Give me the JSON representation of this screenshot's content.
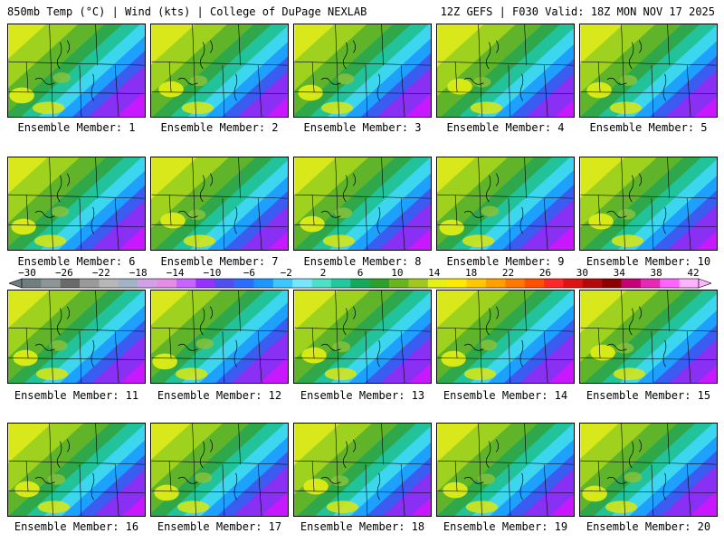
{
  "header": {
    "left_text": "850mb Temp (°C) | Wind (kts) | College of DuPage NEXLAB",
    "right_text": "12Z GEFS | F030 Valid: 18Z MON NOV 17 2025"
  },
  "legend": {
    "tick_labels": [
      "−30",
      "−26",
      "−22",
      "−18",
      "−14",
      "−10",
      "−6",
      "−2",
      "2",
      "6",
      "10",
      "14",
      "18",
      "22",
      "26",
      "30",
      "34",
      "38",
      "42"
    ],
    "colors": [
      "#6f7f7f",
      "#8c9696",
      "#6a6a6a",
      "#9a9a9a",
      "#b7b7b7",
      "#a0b4c8",
      "#d2a0e6",
      "#e68ce6",
      "#c864ff",
      "#9632ff",
      "#5050f0",
      "#2a6eff",
      "#1e96ff",
      "#3cc8ff",
      "#78e6ff",
      "#4de0c8",
      "#23c8a0",
      "#14aa5a",
      "#2ca02c",
      "#6ab41e",
      "#a0c81e",
      "#e6f014",
      "#ffeb00",
      "#ffc800",
      "#ffa000",
      "#ff7800",
      "#ff5000",
      "#ff2828",
      "#dc1414",
      "#b40a0a",
      "#8c0000",
      "#c80078",
      "#e628b4",
      "#ff64ff",
      "#ffb4ff"
    ]
  },
  "panels": [
    {
      "label": "Ensemble Member: 1"
    },
    {
      "label": "Ensemble Member: 2"
    },
    {
      "label": "Ensemble Member: 3"
    },
    {
      "label": "Ensemble Member: 4"
    },
    {
      "label": "Ensemble Member: 5"
    },
    {
      "label": "Ensemble Member: 6"
    },
    {
      "label": "Ensemble Member: 7"
    },
    {
      "label": "Ensemble Member: 8"
    },
    {
      "label": "Ensemble Member: 9"
    },
    {
      "label": "Ensemble Member: 10"
    },
    {
      "label": "Ensemble Member: 11"
    },
    {
      "label": "Ensemble Member: 12"
    },
    {
      "label": "Ensemble Member: 13"
    },
    {
      "label": "Ensemble Member: 14"
    },
    {
      "label": "Ensemble Member: 15"
    },
    {
      "label": "Ensemble Member: 16"
    },
    {
      "label": "Ensemble Member: 17"
    },
    {
      "label": "Ensemble Member: 18"
    },
    {
      "label": "Ensemble Member: 19"
    },
    {
      "label": "Ensemble Member: 20"
    }
  ]
}
